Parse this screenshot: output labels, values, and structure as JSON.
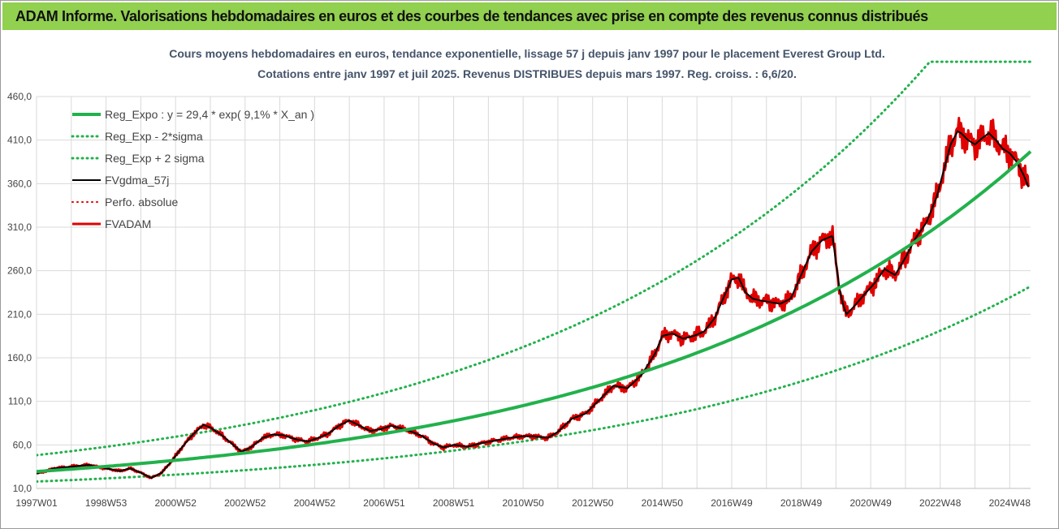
{
  "header": {
    "title": "ADAM Informe. Valorisations hebdomadaires en euros et des courbes de tendances avec prise en compte des revenus connus distribués"
  },
  "chart_data": {
    "type": "line",
    "title_line1": "Cours moyens hebdomadaires en euros, tendance exponentielle, lissage 57 j depuis janv 1997 pour le placement Everest Group Ltd.",
    "title_line2": "Cotations entre janv 1997 et juil 2025. Revenus DISTRIBUES depuis mars 1997. Reg. croiss. : 6,6/20.",
    "ylim": [
      10,
      460
    ],
    "xlim": [
      1997.0,
      2025.6
    ],
    "y_ticks": [
      "10,0",
      "60,0",
      "110,0",
      "160,0",
      "210,0",
      "260,0",
      "310,0",
      "360,0",
      "410,0",
      "460,0"
    ],
    "y_tick_values": [
      10,
      60,
      110,
      160,
      210,
      260,
      310,
      360,
      410,
      460
    ],
    "x_ticks": [
      "1997W01",
      "1998W53",
      "2000W52",
      "2002W52",
      "2004W52",
      "2006W51",
      "2008W51",
      "2010W50",
      "2012W50",
      "2014W50",
      "2016W49",
      "2018W49",
      "2020W49",
      "2022W48",
      "2024W48"
    ],
    "x_tick_values": [
      1997.0,
      1999.0,
      2001.0,
      2003.0,
      2005.0,
      2007.0,
      2009.0,
      2011.0,
      2013.0,
      2015.0,
      2017.0,
      2019.0,
      2021.0,
      2023.0,
      2025.0
    ],
    "grid": true,
    "legend": [
      {
        "label": "Reg_Expo : y = 29,4 * exp( 9,1% *  X_an )",
        "color": "#22b14c",
        "style": "solid",
        "width": 4
      },
      {
        "label": "Reg_Exp - 2*sigma",
        "color": "#22b14c",
        "style": "dotted",
        "width": 3
      },
      {
        "label": "Reg_Exp + 2 sigma",
        "color": "#22b14c",
        "style": "dotted",
        "width": 3
      },
      {
        "label": "FVgdma_57j",
        "color": "#000000",
        "style": "solid",
        "width": 2
      },
      {
        "label": "Perfo. absolue",
        "color": "#e00000",
        "style": "dotted",
        "width": 2
      },
      {
        "label": "FVADAM",
        "color": "#e00000",
        "style": "solid",
        "width": 3
      }
    ],
    "legend_position": "top-left",
    "regression": {
      "a": 29.4,
      "b": 0.091,
      "lower_factor": 0.61,
      "upper_factor": 1.64,
      "upper_cap": 500
    },
    "fvadam_series": {
      "name": "FVADAM",
      "x": [
        1997.0,
        1997.5,
        1998.0,
        1998.5,
        1999.0,
        1999.4,
        1999.7,
        2000.0,
        2000.3,
        2000.6,
        2000.9,
        2001.2,
        2001.5,
        2001.8,
        2002.0,
        2002.3,
        2002.6,
        2002.9,
        2003.2,
        2003.5,
        2003.8,
        2004.1,
        2004.5,
        2004.8,
        2005.1,
        2005.4,
        2005.7,
        2006.0,
        2006.3,
        2006.6,
        2006.9,
        2007.2,
        2007.5,
        2007.8,
        2008.1,
        2008.4,
        2008.7,
        2009.0,
        2009.4,
        2009.8,
        2010.2,
        2010.6,
        2011.0,
        2011.3,
        2011.7,
        2012.0,
        2012.4,
        2012.8,
        2013.2,
        2013.6,
        2014.0,
        2014.4,
        2014.8,
        2015.0,
        2015.3,
        2015.6,
        2015.9,
        2016.2,
        2016.5,
        2016.8,
        2017.0,
        2017.2,
        2017.4,
        2017.6,
        2017.8,
        2018.1,
        2018.4,
        2018.7,
        2019.0,
        2019.3,
        2019.6,
        2019.9,
        2020.1,
        2020.2,
        2020.3,
        2020.5,
        2020.8,
        2021.1,
        2021.4,
        2021.7,
        2022.0,
        2022.3,
        2022.6,
        2022.9,
        2023.1,
        2023.3,
        2023.5,
        2023.6,
        2023.8,
        2024.0,
        2024.2,
        2024.4,
        2024.6,
        2024.8,
        2025.0,
        2025.2,
        2025.4,
        2025.55
      ],
      "values": [
        27,
        33,
        35,
        37,
        33,
        30,
        33,
        28,
        22,
        28,
        42,
        58,
        72,
        83,
        80,
        72,
        62,
        52,
        58,
        68,
        72,
        71,
        66,
        64,
        68,
        73,
        82,
        88,
        82,
        76,
        78,
        82,
        79,
        75,
        70,
        62,
        57,
        60,
        58,
        62,
        65,
        68,
        70,
        70,
        68,
        75,
        90,
        96,
        112,
        128,
        125,
        140,
        165,
        185,
        188,
        182,
        185,
        190,
        205,
        232,
        250,
        252,
        235,
        228,
        226,
        224,
        222,
        228,
        255,
        282,
        295,
        300,
        240,
        222,
        210,
        218,
        232,
        245,
        262,
        255,
        275,
        298,
        315,
        345,
        375,
        405,
        420,
        418,
        410,
        405,
        412,
        418,
        410,
        400,
        395,
        385,
        370,
        355
      ]
    }
  }
}
